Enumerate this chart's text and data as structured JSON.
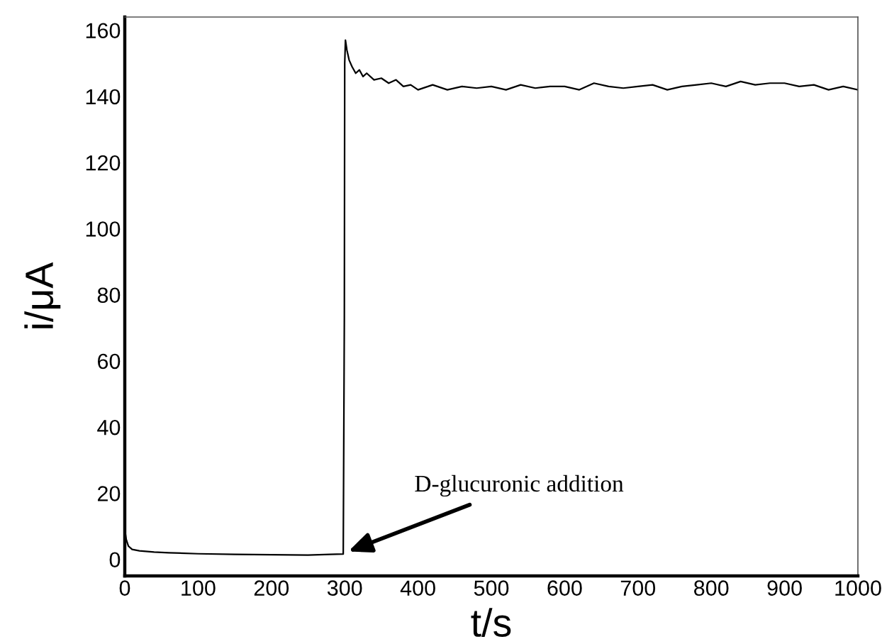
{
  "chart_data": {
    "type": "line",
    "xlabel": "t/s",
    "ylabel": "i/μA",
    "x": [
      0,
      2,
      5,
      10,
      20,
      40,
      60,
      100,
      150,
      200,
      250,
      280,
      298,
      299.5,
      300,
      301,
      303,
      306,
      310,
      315,
      320,
      325,
      330,
      340,
      350,
      360,
      370,
      380,
      390,
      400,
      420,
      440,
      460,
      480,
      500,
      520,
      540,
      560,
      580,
      600,
      620,
      640,
      660,
      680,
      700,
      720,
      740,
      760,
      780,
      800,
      820,
      840,
      860,
      880,
      900,
      920,
      940,
      960,
      980,
      1000
    ],
    "series": [
      {
        "color": "#000000",
        "values": [
          9,
          6,
          4,
          3,
          2.6,
          2.2,
          2,
          1.7,
          1.5,
          1.4,
          1.3,
          1.5,
          1.6,
          73,
          150,
          157,
          154,
          151,
          149,
          147,
          148,
          146,
          147,
          145,
          145.5,
          144,
          145,
          143,
          143.5,
          142,
          143.5,
          142,
          143,
          142.5,
          143,
          142,
          143.5,
          142.5,
          143,
          143,
          142,
          144,
          143,
          142.5,
          143,
          143.5,
          142,
          143,
          143.5,
          144,
          143,
          144.5,
          143.5,
          144,
          144,
          143,
          143.5,
          142,
          143,
          142
        ]
      }
    ],
    "xlim": [
      0,
      1000
    ],
    "xticks": [
      0,
      100,
      200,
      300,
      400,
      500,
      600,
      700,
      800,
      900,
      1000
    ],
    "ylim": [
      -5,
      164
    ],
    "yticks": [
      0,
      20,
      40,
      60,
      80,
      100,
      120,
      140,
      160
    ],
    "annotations": [
      {
        "text": "D-glucuronic addition",
        "x": 300,
        "y": 2
      }
    ],
    "grid": false,
    "legend": false,
    "marker": "none",
    "line_style": "solid"
  }
}
